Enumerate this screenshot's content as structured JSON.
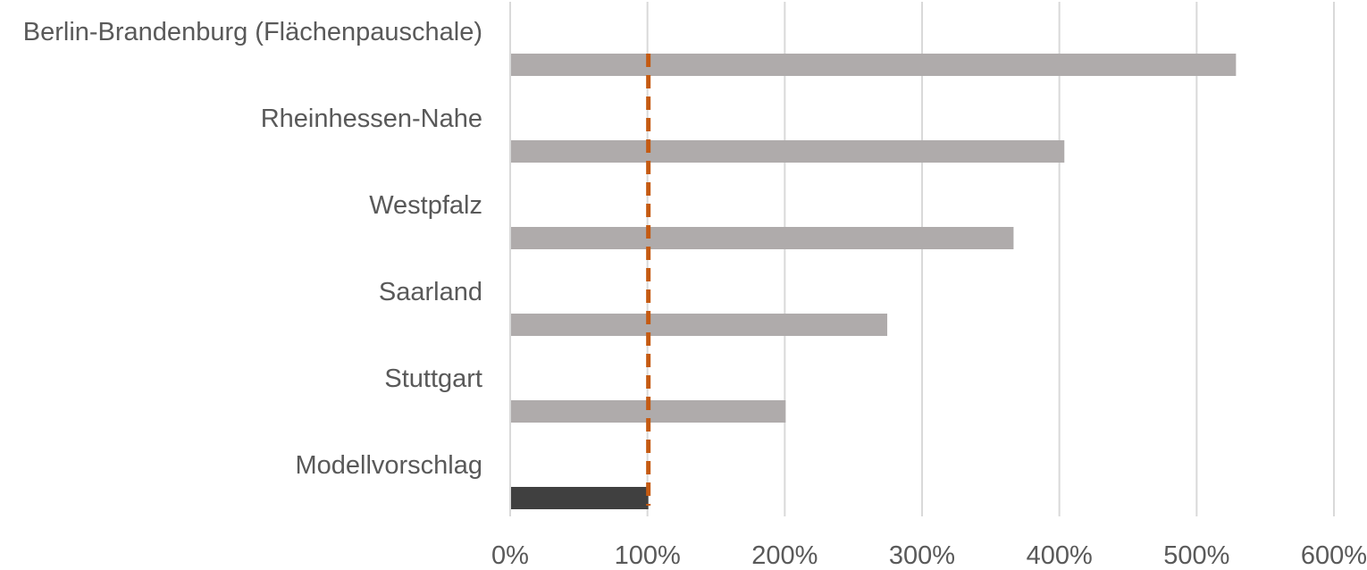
{
  "chart_data": {
    "type": "bar",
    "orientation": "horizontal",
    "categories": [
      "Berlin-Brandenburg (Flächenpauschale)",
      "Rheinhessen-Nahe",
      "Westpfalz",
      "Saarland",
      "Stuttgart",
      "Modellvorschlag"
    ],
    "values": [
      528,
      403,
      366,
      274,
      200,
      100
    ],
    "bar_colors": [
      "#AFABAB",
      "#AFABAB",
      "#AFABAB",
      "#AFABAB",
      "#AFABAB",
      "#404040"
    ],
    "reference_line": {
      "value": 100,
      "style": "dashed",
      "color": "#C55A11"
    },
    "xlim": [
      0,
      600
    ],
    "x_ticks": [
      "0%",
      "100%",
      "200%",
      "300%",
      "400%",
      "500%",
      "600%"
    ],
    "grid": "vertical",
    "gridline_color": "#D9D9D9",
    "title": "",
    "xlabel": "",
    "ylabel": ""
  }
}
